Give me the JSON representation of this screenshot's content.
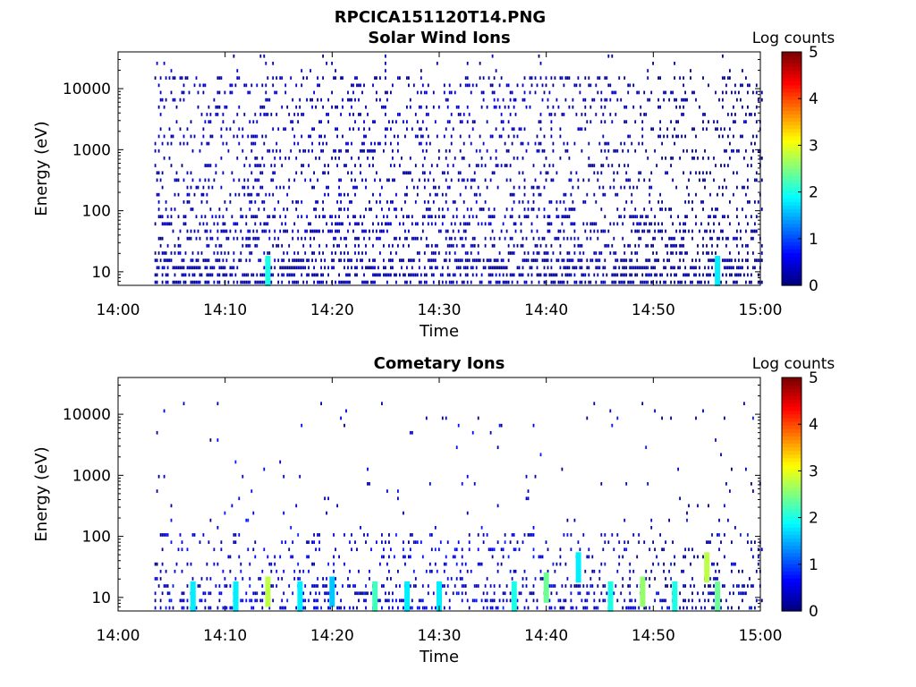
{
  "figure": {
    "title": "RPCICA151120T14.PNG"
  },
  "chart_data": [
    {
      "type": "heatmap",
      "title": "Solar Wind Ions",
      "xlabel": "Time",
      "ylabel": "Energy (eV)",
      "y_scale": "log",
      "ylim": [
        6,
        40000
      ],
      "y_ticks": [
        10,
        100,
        1000,
        10000
      ],
      "y_tick_labels": [
        "10",
        "100",
        "1000",
        "10000"
      ],
      "x_tick_labels": [
        "14:00",
        "14:10",
        "14:20",
        "14:30",
        "14:40",
        "14:50",
        "15:00"
      ],
      "x_range_minutes": [
        0,
        60
      ],
      "data_time_range": [
        "14:03",
        "15:00"
      ],
      "colorbar": {
        "label": "Log counts",
        "min": 0,
        "max": 5,
        "ticks": [
          "0",
          "1",
          "2",
          "3",
          "4",
          "5"
        ],
        "colormap": "jet"
      },
      "bright_patches": [
        {
          "time": "14:14",
          "energy_eV": 10,
          "log_counts": 2
        },
        {
          "time": "14:56",
          "energy_eV": 10,
          "log_counts": 1.8
        }
      ],
      "typical_log_counts": 0.3
    },
    {
      "type": "heatmap",
      "title": "Cometary Ions",
      "xlabel": "Time",
      "ylabel": "Energy (eV)",
      "y_scale": "log",
      "ylim": [
        6,
        40000
      ],
      "y_ticks": [
        10,
        100,
        1000,
        10000
      ],
      "y_tick_labels": [
        "10",
        "100",
        "1000",
        "10000"
      ],
      "x_tick_labels": [
        "14:00",
        "14:10",
        "14:20",
        "14:30",
        "14:40",
        "14:50",
        "15:00"
      ],
      "x_range_minutes": [
        0,
        60
      ],
      "data_time_range": [
        "14:03",
        "15:00"
      ],
      "colorbar": {
        "label": "Log counts",
        "min": 0,
        "max": 5,
        "ticks": [
          "0",
          "1",
          "2",
          "3",
          "4",
          "5"
        ],
        "colormap": "jet"
      },
      "bright_patches": [
        {
          "time": "14:07",
          "energy_eV": 10,
          "log_counts": 1.8
        },
        {
          "time": "14:11",
          "energy_eV": 10,
          "log_counts": 1.8
        },
        {
          "time": "14:14",
          "energy_eV": 12,
          "log_counts": 2.8
        },
        {
          "time": "14:17",
          "energy_eV": 10,
          "log_counts": 1.8
        },
        {
          "time": "14:20",
          "energy_eV": 12,
          "log_counts": 1.6
        },
        {
          "time": "14:24",
          "energy_eV": 10,
          "log_counts": 2.2
        },
        {
          "time": "14:27",
          "energy_eV": 10,
          "log_counts": 1.8
        },
        {
          "time": "14:30",
          "energy_eV": 10,
          "log_counts": 1.8
        },
        {
          "time": "14:37",
          "energy_eV": 10,
          "log_counts": 2.0
        },
        {
          "time": "14:40",
          "energy_eV": 14,
          "log_counts": 2.4
        },
        {
          "time": "14:43",
          "energy_eV": 30,
          "log_counts": 1.8
        },
        {
          "time": "14:46",
          "energy_eV": 10,
          "log_counts": 2.0
        },
        {
          "time": "14:49",
          "energy_eV": 12,
          "log_counts": 2.6
        },
        {
          "time": "14:52",
          "energy_eV": 10,
          "log_counts": 2.0
        },
        {
          "time": "14:55",
          "energy_eV": 30,
          "log_counts": 2.8
        },
        {
          "time": "14:56",
          "energy_eV": 10,
          "log_counts": 2.4
        }
      ],
      "typical_log_counts": 0.5
    }
  ]
}
